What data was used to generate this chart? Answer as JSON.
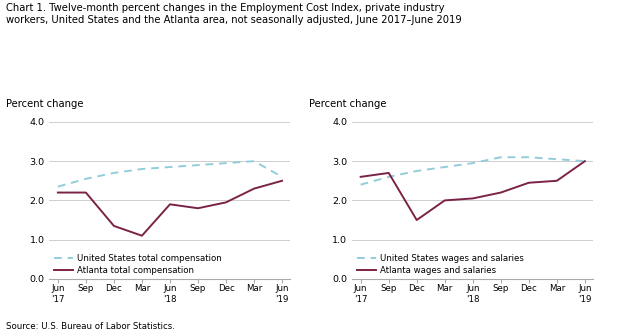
{
  "title": "Chart 1. Twelve-month percent changes in the Employment Cost Index, private industry\nworkers, United States and the Atlanta area, not seasonally adjusted, June 2017–June 2019",
  "source": "Source: U.S. Bureau of Labor Statistics.",
  "ylabel": "Percent change",
  "ylim": [
    0.0,
    4.0
  ],
  "yticks": [
    0.0,
    1.0,
    2.0,
    3.0,
    4.0
  ],
  "x_labels": [
    "Jun\n'17",
    "Sep",
    "Dec",
    "Mar",
    "Jun\n'18",
    "Sep",
    "Dec",
    "Mar",
    "Jun\n'19"
  ],
  "left": {
    "us_total": [
      2.35,
      2.55,
      2.7,
      2.8,
      2.85,
      2.9,
      2.95,
      3.0,
      2.6
    ],
    "atl_total": [
      2.2,
      2.2,
      1.35,
      1.1,
      1.9,
      1.8,
      1.95,
      2.3,
      2.5
    ],
    "legend1": "United States total compensation",
    "legend2": "Atlanta total compensation"
  },
  "right": {
    "us_wages": [
      2.4,
      2.6,
      2.75,
      2.85,
      2.95,
      3.1,
      3.1,
      3.05,
      3.0
    ],
    "atl_wages": [
      2.6,
      2.7,
      1.5,
      2.0,
      2.05,
      2.2,
      2.45,
      2.5,
      3.0
    ],
    "legend1": "United States wages and salaries",
    "legend2": "Atlanta wages and salaries"
  },
  "us_color": "#92CDDC",
  "atl_color": "#7B2346",
  "background_color": "#ffffff",
  "grid_color": "#bbbbbb"
}
